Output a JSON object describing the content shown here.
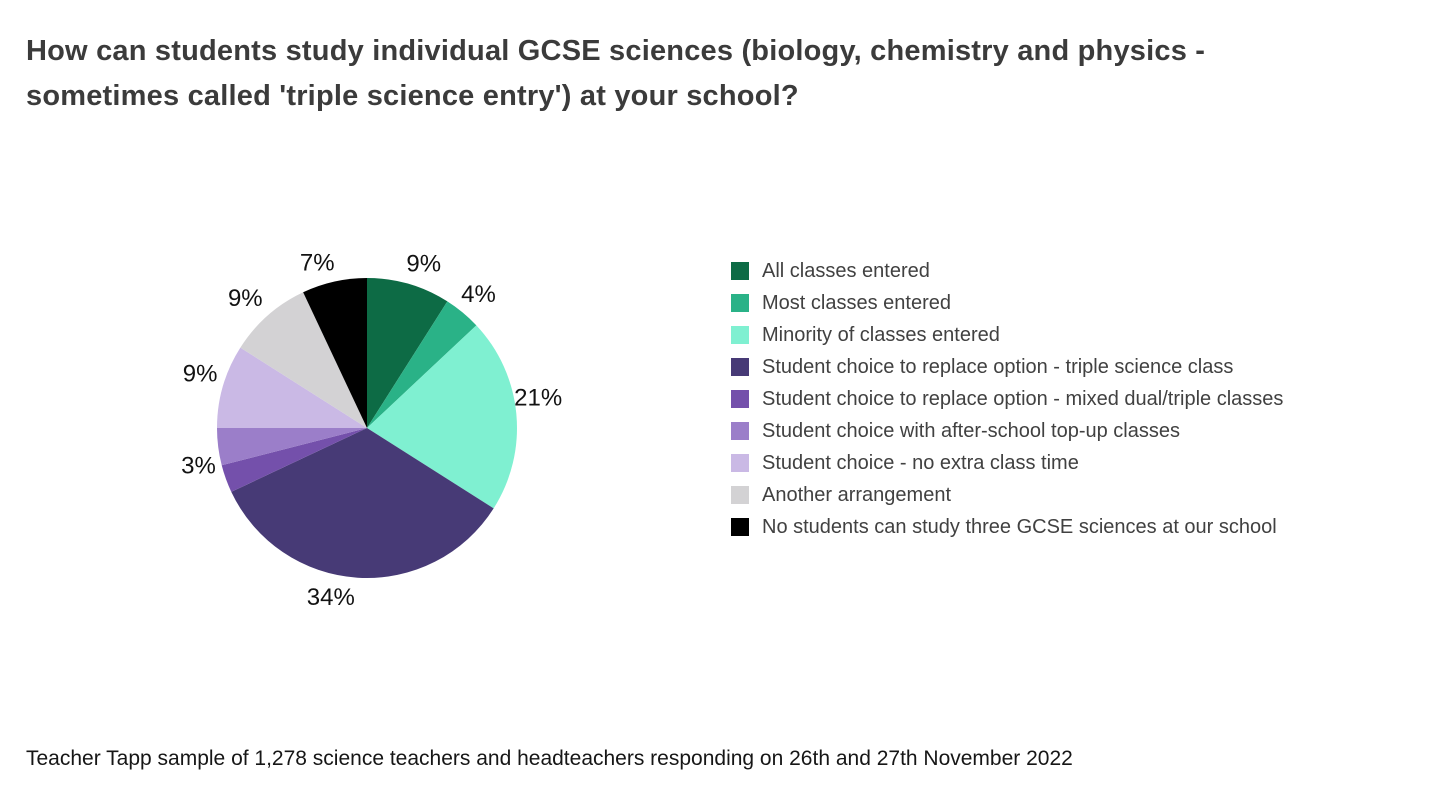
{
  "page": {
    "background": "#ffffff"
  },
  "title": {
    "text": "How can students study individual GCSE sciences (biology, chemistry and physics - sometimes called 'triple science entry') at your school?",
    "lines": [
      "How can students study individual GCSE sciences (biology, chemistry and physics -",
      "sometimes called 'triple science entry') at your school?"
    ],
    "color": "#3b3b3b"
  },
  "source_note": {
    "text": "Teacher Tapp sample of 1,278 science teachers and headteachers responding on 26th and 27th November 2022",
    "color": "#161616"
  },
  "chart_data": {
    "type": "pie",
    "title": "How can students study individual GCSE sciences (biology, chemistry and physics - sometimes called 'triple science entry') at your school?",
    "source_note": "Teacher Tapp sample of 1,278 science teachers and headteachers responding on 26th and 27th November 2022",
    "legend_position": "right",
    "start_angle_deg": 0,
    "direction": "clockwise",
    "units": "percent",
    "slices": [
      {
        "label": "All classes entered",
        "value": 9,
        "pct_label": "9%",
        "color": "#0d6b45"
      },
      {
        "label": "Most classes entered",
        "value": 4,
        "pct_label": "4%",
        "color": "#2ab287"
      },
      {
        "label": "Minority of classes entered",
        "value": 21,
        "pct_label": "21%",
        "color": "#7ff0d1"
      },
      {
        "label": "Student choice to replace option - triple science class",
        "value": 34,
        "pct_label": "34%",
        "color": "#473a76"
      },
      {
        "label": "Student choice to replace option - mixed dual/triple classes",
        "value": 3,
        "pct_label": "3%",
        "color": "#7450ab"
      },
      {
        "label": "Student choice with after-school top-up classes",
        "value": 4,
        "pct_label": "",
        "color": "#9b7ec9"
      },
      {
        "label": "Student choice - no extra class time",
        "value": 9,
        "pct_label": "9%",
        "color": "#cab9e5"
      },
      {
        "label": "Another arrangement",
        "value": 9,
        "pct_label": "9%",
        "color": "#d3d2d4"
      },
      {
        "label": "No students can study three GCSE sciences at our school",
        "value": 7,
        "pct_label": "7%",
        "color": "#000000"
      }
    ]
  }
}
